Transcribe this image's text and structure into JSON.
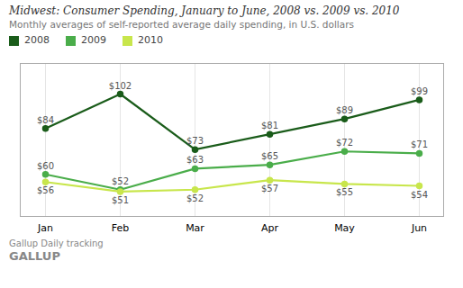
{
  "chart_data": {
    "type": "line",
    "title": "Midwest: Consumer Spending, January to June, 2008 vs. 2009 vs. 2010",
    "subtitle": "Monthly averages of self-reported average daily spending, in U.S. dollars",
    "categories": [
      "Jan",
      "Feb",
      "Mar",
      "Apr",
      "May",
      "Jun"
    ],
    "series": [
      {
        "name": "2008",
        "color": "#1a5c1a",
        "values": [
          84,
          102,
          73,
          81,
          89,
          99
        ],
        "value_labels": [
          "$84",
          "$102",
          "$73",
          "$81",
          "$89",
          "$99"
        ]
      },
      {
        "name": "2009",
        "color": "#4aad4a",
        "values": [
          60,
          52,
          63,
          65,
          72,
          71
        ],
        "value_labels": [
          "$60",
          "$52",
          "$63",
          "$65",
          "$72",
          "$71"
        ]
      },
      {
        "name": "2010",
        "color": "#c8e64c",
        "values": [
          56,
          51,
          52,
          57,
          55,
          54
        ],
        "value_labels": [
          "$56",
          "$51",
          "$52",
          "$57",
          "$55",
          "$54"
        ]
      }
    ],
    "ylim": [
      38,
      118
    ],
    "grid": true,
    "legend": "top",
    "marker": "circle",
    "data_labels": true,
    "tick_labels": "x",
    "annotations": [
      "Gallup Daily tracking",
      "GALLUP"
    ]
  }
}
